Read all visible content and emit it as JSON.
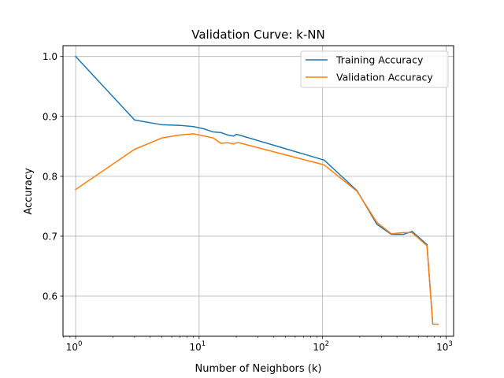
{
  "chart_data": {
    "type": "line",
    "title": "Validation Curve: k-NN",
    "xlabel": "Number of Neighbors (k)",
    "ylabel": "Accuracy",
    "xscale": "log",
    "xlim": [
      0.79,
      1150
    ],
    "ylim": [
      0.533,
      1.018
    ],
    "grid": true,
    "legend_position": "top-right",
    "x_ticks": [
      {
        "value": 1,
        "base": "10",
        "exp": "0"
      },
      {
        "value": 10,
        "base": "10",
        "exp": "1"
      },
      {
        "value": 100,
        "base": "10",
        "exp": "2"
      },
      {
        "value": 1000,
        "base": "10",
        "exp": "3"
      }
    ],
    "y_ticks": [
      {
        "value": 0.6,
        "label": "0.6"
      },
      {
        "value": 0.7,
        "label": "0.7"
      },
      {
        "value": 0.8,
        "label": "0.8"
      },
      {
        "value": 0.9,
        "label": "0.9"
      },
      {
        "value": 1.0,
        "label": "1.0"
      }
    ],
    "series": [
      {
        "name": "Training Accuracy",
        "color": "#1f77b4",
        "points": [
          [
            1,
            1.0
          ],
          [
            3,
            0.894
          ],
          [
            5,
            0.886
          ],
          [
            7,
            0.885
          ],
          [
            9,
            0.883
          ],
          [
            10,
            0.881
          ],
          [
            11,
            0.879
          ],
          [
            13,
            0.874
          ],
          [
            15,
            0.873
          ],
          [
            17,
            0.869
          ],
          [
            19,
            0.867
          ],
          [
            20,
            0.87
          ],
          [
            21,
            0.869
          ],
          [
            103,
            0.827
          ],
          [
            190,
            0.776
          ],
          [
            275,
            0.72
          ],
          [
            360,
            0.703
          ],
          [
            450,
            0.703
          ],
          [
            530,
            0.708
          ],
          [
            700,
            0.686
          ],
          [
            780,
            0.553
          ],
          [
            860,
            0.553
          ]
        ]
      },
      {
        "name": "Validation Accuracy",
        "color": "#ff7f0e",
        "points": [
          [
            1,
            0.778
          ],
          [
            3,
            0.845
          ],
          [
            5,
            0.864
          ],
          [
            7,
            0.869
          ],
          [
            9,
            0.871
          ],
          [
            10,
            0.869
          ],
          [
            13,
            0.864
          ],
          [
            15,
            0.855
          ],
          [
            17,
            0.856
          ],
          [
            19,
            0.854
          ],
          [
            20,
            0.856
          ],
          [
            21,
            0.856
          ],
          [
            103,
            0.819
          ],
          [
            190,
            0.775
          ],
          [
            275,
            0.723
          ],
          [
            360,
            0.704
          ],
          [
            450,
            0.706
          ],
          [
            530,
            0.706
          ],
          [
            700,
            0.684
          ],
          [
            780,
            0.553
          ],
          [
            860,
            0.553
          ]
        ]
      }
    ]
  }
}
